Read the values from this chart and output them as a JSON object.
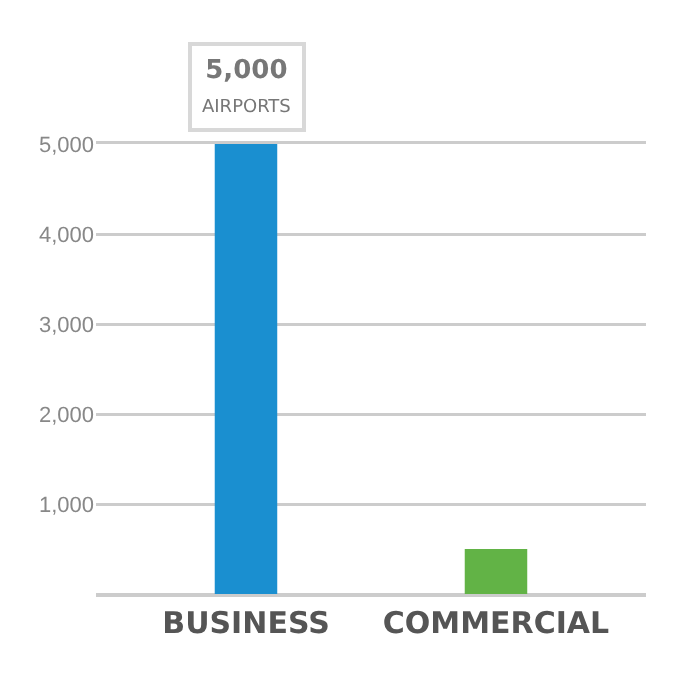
{
  "chart_data": {
    "type": "bar",
    "categories": [
      "BUSINESS",
      "COMMERCIAL"
    ],
    "values": [
      5000,
      500
    ],
    "colors": [
      "#1a8fd0",
      "#62b346"
    ],
    "value_labels": [
      "5,000 AIRPORTS",
      null
    ],
    "ylim": [
      0,
      5000
    ],
    "yticks": [
      {
        "value": 0,
        "label": null
      },
      {
        "value": 1000,
        "label": "1,000"
      },
      {
        "value": 2000,
        "label": "2,000"
      },
      {
        "value": 3000,
        "label": "3,000"
      },
      {
        "value": 4000,
        "label": "4,000"
      },
      {
        "value": 5000,
        "label": "5,000"
      }
    ],
    "grid": "y",
    "legend": false
  }
}
